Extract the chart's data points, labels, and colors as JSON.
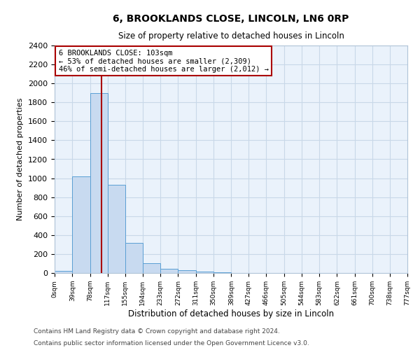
{
  "title": "6, BROOKLANDS CLOSE, LINCOLN, LN6 0RP",
  "subtitle": "Size of property relative to detached houses in Lincoln",
  "xlabel": "Distribution of detached houses by size in Lincoln",
  "ylabel": "Number of detached properties",
  "bar_left_edges": [
    0,
    39,
    78,
    117,
    155,
    194,
    233,
    272,
    311,
    350,
    389,
    427,
    466,
    505,
    544,
    583,
    622,
    661,
    700,
    738
  ],
  "bar_heights": [
    20,
    1020,
    1900,
    930,
    320,
    105,
    48,
    28,
    15,
    5,
    3,
    0,
    0,
    0,
    0,
    0,
    0,
    0,
    0,
    0
  ],
  "bin_width": 39,
  "bar_color": "#c8daf0",
  "bar_edge_color": "#5a9fd4",
  "tick_labels": [
    "0sqm",
    "39sqm",
    "78sqm",
    "117sqm",
    "155sqm",
    "194sqm",
    "233sqm",
    "272sqm",
    "311sqm",
    "350sqm",
    "389sqm",
    "427sqm",
    "466sqm",
    "505sqm",
    "544sqm",
    "583sqm",
    "622sqm",
    "661sqm",
    "700sqm",
    "738sqm",
    "777sqm"
  ],
  "ylim": [
    0,
    2400
  ],
  "yticks": [
    0,
    200,
    400,
    600,
    800,
    1000,
    1200,
    1400,
    1600,
    1800,
    2000,
    2200,
    2400
  ],
  "xlim": [
    0,
    777
  ],
  "property_line_x": 103,
  "property_line_color": "#aa0000",
  "annotation_line1": "6 BROOKLANDS CLOSE: 103sqm",
  "annotation_line2": "← 53% of detached houses are smaller (2,309)",
  "annotation_line3": "46% of semi-detached houses are larger (2,012) →",
  "annotation_box_color": "#aa0000",
  "annotation_box_bg": "#ffffff",
  "grid_color": "#c8d8e8",
  "bg_color": "#eaf2fb",
  "footer_line1": "Contains HM Land Registry data © Crown copyright and database right 2024.",
  "footer_line2": "Contains public sector information licensed under the Open Government Licence v3.0."
}
